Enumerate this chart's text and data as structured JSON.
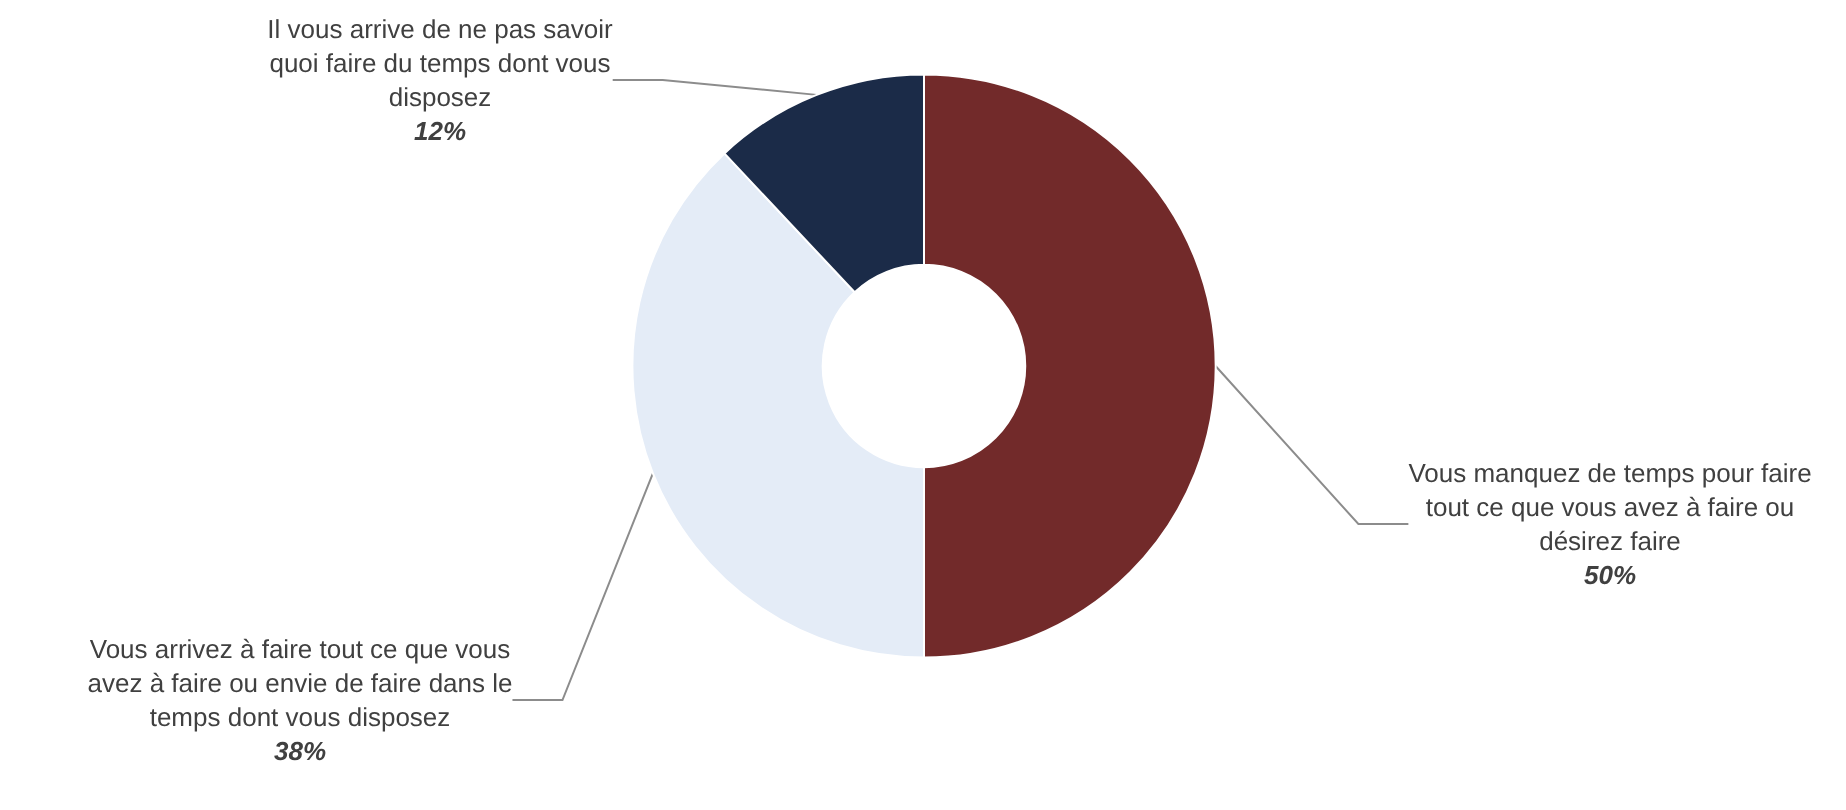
{
  "chart_data": {
    "type": "donut",
    "categories": [
      "Vous manquez de temps pour faire tout ce que vous avez à faire ou désirez faire",
      "Vous arrivez à faire tout ce que vous avez à faire ou envie de faire dans le temps dont vous disposez",
      "Il vous arrive de ne pas savoir quoi faire du temps dont vous disposez"
    ],
    "values": [
      50,
      38,
      12
    ],
    "colors": [
      "#722a2a",
      "#e4ecf7",
      "#1b2b48"
    ],
    "value_labels": [
      "50%",
      "38%",
      "12%"
    ],
    "legend": false
  }
}
